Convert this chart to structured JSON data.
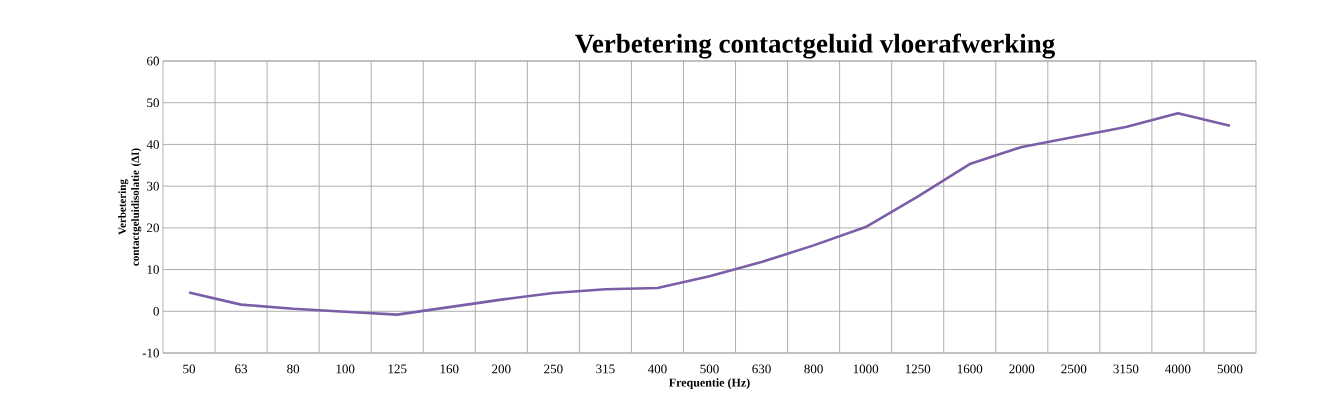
{
  "chart_data": {
    "type": "line",
    "title": "Verbetering contactgeluid vloerafwerking",
    "xlabel": "Frequentie (Hz)",
    "ylabel": "Verbetering contactgeluidisolatie (ΔI)",
    "categories": [
      "50",
      "63",
      "80",
      "100",
      "125",
      "160",
      "200",
      "250",
      "315",
      "400",
      "500",
      "630",
      "800",
      "1000",
      "1250",
      "1600",
      "2000",
      "2500",
      "3150",
      "4000",
      "5000"
    ],
    "series": [
      {
        "color": "#7b5ea7",
        "values": [
          4.5,
          1.6,
          0.6,
          -0.1,
          -0.8,
          1.0,
          2.8,
          4.4,
          5.3,
          5.6,
          8.4,
          11.8,
          15.8,
          20.2,
          27.5,
          35.3,
          39.4,
          41.8,
          44.2,
          47.5,
          44.5
        ]
      }
    ],
    "ylim": [
      -10,
      60
    ],
    "yticks": [
      -10,
      0,
      10,
      20,
      30,
      40,
      50,
      60
    ],
    "grid": true,
    "marker": "none",
    "line_style": "solid"
  }
}
